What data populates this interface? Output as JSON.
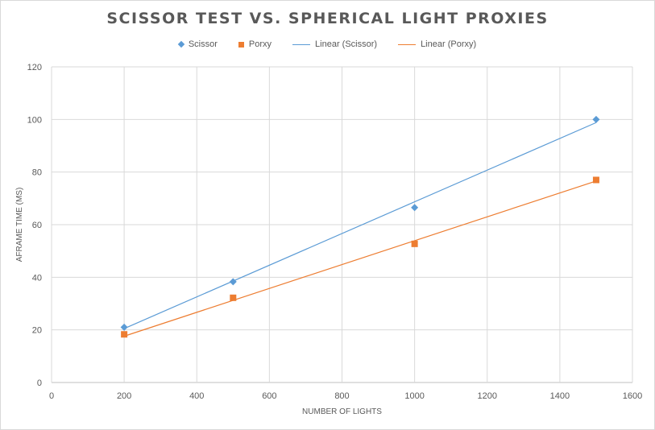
{
  "chart_data": {
    "type": "scatter",
    "title": "SCISSOR TEST VS. SPHERICAL LIGHT PROXIES",
    "xlabel": "NUMBER OF LIGHTS",
    "ylabel": "AFRAME TIME (MS)",
    "xlim": [
      0,
      1600
    ],
    "ylim": [
      0,
      120
    ],
    "xticks": [
      0,
      200,
      400,
      600,
      800,
      1000,
      1200,
      1400,
      1600
    ],
    "yticks": [
      0,
      20,
      40,
      60,
      80,
      100,
      120
    ],
    "grid": true,
    "legend_position": "top",
    "series": [
      {
        "name": "Scissor",
        "marker": "diamond",
        "color": "#5b9bd5",
        "points": [
          {
            "x": 200,
            "y": 21
          },
          {
            "x": 500,
            "y": 38.3
          },
          {
            "x": 1000,
            "y": 66.5
          },
          {
            "x": 1500,
            "y": 100
          }
        ]
      },
      {
        "name": "Porxy",
        "marker": "square",
        "color": "#ed7d31",
        "points": [
          {
            "x": 200,
            "y": 18.3
          },
          {
            "x": 500,
            "y": 32.2
          },
          {
            "x": 1000,
            "y": 52.7
          },
          {
            "x": 1500,
            "y": 77
          }
        ]
      }
    ],
    "trendlines": [
      {
        "name": "Linear (Scissor)",
        "color": "#5b9bd5",
        "from": {
          "x": 200,
          "y": 20.5
        },
        "to": {
          "x": 1500,
          "y": 98.8
        }
      },
      {
        "name": "Linear (Porxy)",
        "color": "#ed7d31",
        "from": {
          "x": 200,
          "y": 17.6
        },
        "to": {
          "x": 1500,
          "y": 76.6
        }
      }
    ]
  }
}
